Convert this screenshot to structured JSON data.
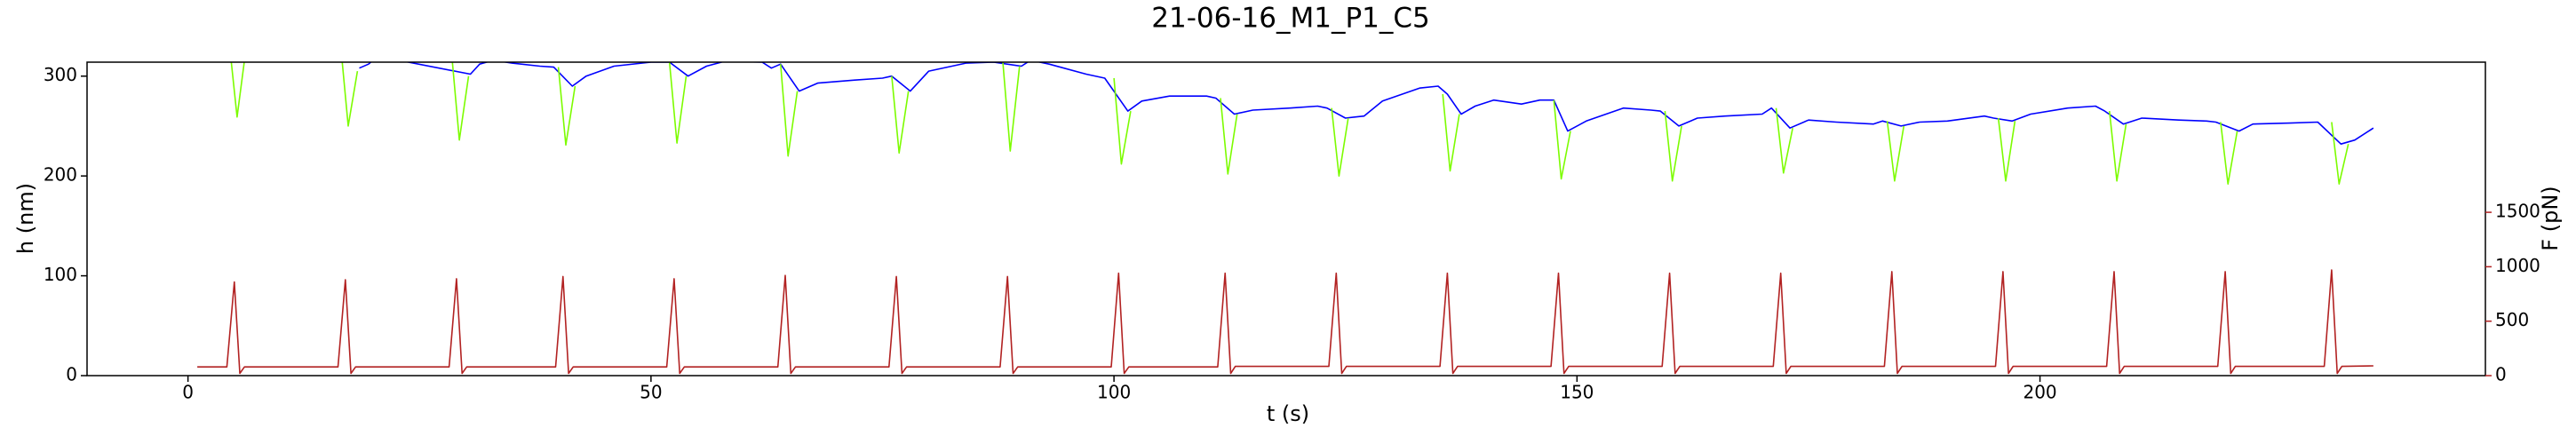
{
  "chart_data": {
    "type": "line",
    "title": "21-06-16_M1_P1_C5",
    "xlabel": "t (s)",
    "ylabel": "h (nm)",
    "y2label": "F (pN)",
    "xlim": [
      -10.9,
      248.1
    ],
    "xticks": [
      0,
      50,
      100,
      150,
      200
    ],
    "ylim": [
      0,
      314
    ],
    "yticks": [
      0,
      100,
      200,
      300
    ],
    "ycolor": "#0000ff",
    "y2lim": [
      0,
      2879
    ],
    "y2ticks": [
      0,
      500,
      1000,
      1500
    ],
    "y2color": "#b22222",
    "series": [
      {
        "color": "#0000ff",
        "x": [
          18.5,
          19.5,
          20.5,
          30.5,
          31.5,
          33,
          35,
          38,
          39.5,
          41.5,
          43,
          46,
          50,
          52,
          54,
          56,
          58,
          62,
          63,
          64,
          66,
          68,
          72,
          75,
          76,
          78,
          80,
          84,
          87,
          90,
          91,
          93,
          97,
          99,
          101.5,
          103,
          106,
          110,
          111,
          113,
          115,
          119,
          122,
          123,
          125,
          127,
          129,
          133,
          135,
          136,
          137.5,
          139,
          141,
          144,
          146,
          147.5,
          149,
          151,
          155,
          158,
          159,
          161,
          163,
          166,
          170,
          171,
          173,
          175,
          178,
          182,
          183,
          185,
          187,
          190,
          194,
          195,
          197,
          199,
          203,
          206,
          207,
          209,
          211,
          215,
          218,
          219,
          221.5,
          223,
          227,
          230,
          232.5,
          234,
          236
        ],
        "values": [
          308,
          312,
          320,
          302,
          312,
          316,
          313,
          310,
          309,
          290,
          300,
          310,
          314,
          314,
          300,
          310,
          315,
          314,
          308,
          312,
          285,
          293,
          296,
          298,
          300,
          285,
          305,
          313,
          314,
          310,
          316,
          312,
          302,
          298,
          265,
          275,
          280,
          280,
          278,
          262,
          266,
          268,
          270,
          268,
          258,
          260,
          275,
          288,
          290,
          282,
          262,
          270,
          276,
          272,
          276,
          276,
          245,
          255,
          268,
          266,
          265,
          250,
          258,
          260,
          262,
          268,
          248,
          256,
          254,
          252,
          255,
          250,
          254,
          255,
          260,
          258,
          255,
          262,
          268,
          270,
          265,
          252,
          258,
          256,
          255,
          254,
          245,
          252,
          253,
          254,
          232,
          236,
          248
        ]
      },
      {
        "color": "#7cfc00",
        "x": [
          4.5,
          5.3,
          6.3,
          6.5,
          16.5,
          17.3,
          18.3,
          18.5,
          28.5,
          29.3,
          30.3,
          30.5,
          40,
          40.8,
          41.8,
          42,
          52,
          52.8,
          53.8,
          54,
          64,
          64.8,
          65.8,
          66,
          76,
          76.8,
          77.8,
          78,
          88,
          88.8,
          89.8,
          90,
          100,
          100.8,
          101.8,
          102,
          111.5,
          112.3,
          113.3,
          113.5,
          123.5,
          124.3,
          125.3,
          125.5,
          135.5,
          136.3,
          137.3,
          137.5,
          147.5,
          148.3,
          149.3,
          149.5,
          159.5,
          160.3,
          161.3,
          161.5,
          171.5,
          172.3,
          173.3,
          173.5,
          183.5,
          184.3,
          185.3,
          185.5,
          195.5,
          196.3,
          197.3,
          197.5,
          207.5,
          208.3,
          209.3,
          209.5,
          219.5,
          220.3,
          221.3,
          221.5,
          231.5,
          232.3,
          233.3
        ],
        "values": [
          330,
          259,
          330,
          null,
          330,
          250,
          305,
          null,
          320,
          236,
          300,
          null,
          309,
          231,
          290,
          null,
          314,
          233,
          300,
          null,
          312,
          220,
          285,
          null,
          300,
          223,
          285,
          null,
          314,
          225,
          310,
          null,
          298,
          212,
          265,
          null,
          278,
          202,
          262,
          null,
          268,
          200,
          258,
          null,
          282,
          205,
          262,
          null,
          276,
          197,
          245,
          null,
          265,
          195,
          250,
          null,
          268,
          203,
          248,
          null,
          255,
          195,
          250,
          null,
          258,
          195,
          255,
          null,
          265,
          195,
          252,
          null,
          254,
          192,
          245,
          null,
          254,
          192,
          232
        ]
      },
      {
        "color": "#b22222",
        "axis": "y2",
        "x": [
          1,
          4.2,
          5,
          5.6,
          6.1,
          16.2,
          17,
          17.6,
          18.1,
          28.2,
          29,
          29.6,
          30.1,
          39.7,
          40.5,
          41.1,
          41.6,
          51.7,
          52.5,
          53.1,
          53.6,
          63.7,
          64.5,
          65.1,
          65.6,
          75.7,
          76.5,
          77.1,
          77.6,
          87.7,
          88.5,
          89.1,
          89.6,
          99.7,
          100.5,
          101.1,
          101.6,
          111.2,
          112,
          112.6,
          113.1,
          123.2,
          124,
          124.6,
          125.1,
          135.2,
          136,
          136.6,
          137.1,
          147.2,
          148,
          148.6,
          149.1,
          159.2,
          160,
          160.6,
          161.1,
          171.2,
          172,
          172.6,
          173.1,
          183.2,
          184,
          184.6,
          185.1,
          195.2,
          196,
          196.6,
          197.1,
          207.2,
          208,
          208.6,
          209.1,
          219.2,
          220,
          220.6,
          221.1,
          230.7,
          231.5,
          232.1,
          232.6,
          236
        ],
        "values": [
          80,
          80,
          860,
          20,
          80,
          80,
          880,
          20,
          80,
          80,
          890,
          20,
          80,
          80,
          910,
          20,
          80,
          80,
          890,
          20,
          80,
          80,
          920,
          20,
          80,
          80,
          910,
          20,
          80,
          80,
          910,
          20,
          80,
          80,
          940,
          20,
          80,
          80,
          940,
          20,
          85,
          85,
          940,
          20,
          85,
          85,
          940,
          20,
          85,
          85,
          940,
          20,
          85,
          85,
          940,
          20,
          85,
          85,
          940,
          20,
          85,
          85,
          955,
          20,
          85,
          85,
          955,
          20,
          85,
          85,
          955,
          20,
          85,
          85,
          955,
          20,
          85,
          85,
          970,
          20,
          85,
          90
        ]
      }
    ]
  }
}
